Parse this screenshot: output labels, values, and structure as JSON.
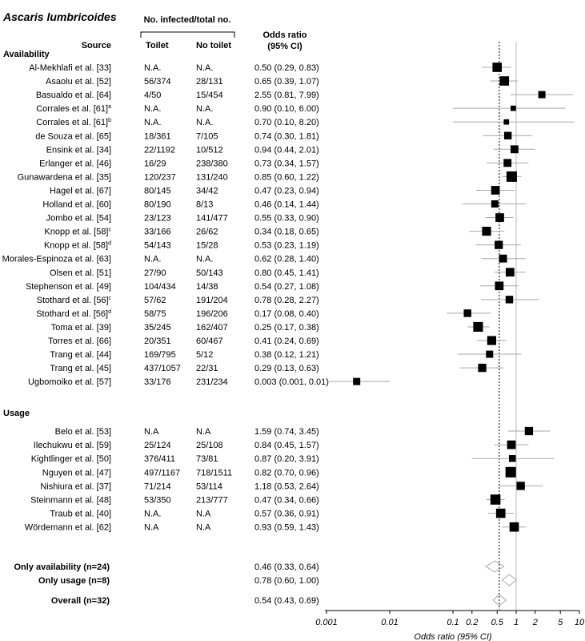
{
  "chart_data": {
    "type": "forest",
    "title": "Ascaris lumbricoides",
    "header": {
      "group": "No. infected/total no.",
      "source": "Source",
      "toilet": "Toilet",
      "no_toilet": "No toilet",
      "or_line1": "Odds ratio",
      "or_line2": "(95% CI)"
    },
    "xlabel": "Odds ratio (95% CI)",
    "xscale": "log",
    "xlim": [
      0.001,
      10
    ],
    "xticks": [
      {
        "v": 0.001,
        "label": "0.001"
      },
      {
        "v": 0.01,
        "label": "0.01"
      },
      {
        "v": 0.1,
        "label": "0.1"
      },
      {
        "v": 0.2,
        "label": "0.2"
      },
      {
        "v": 0.5,
        "label": "0.5"
      },
      {
        "v": 1,
        "label": "1"
      },
      {
        "v": 2,
        "label": "2"
      },
      {
        "v": 5,
        "label": "5"
      },
      {
        "v": 10,
        "label": "10"
      }
    ],
    "reference_line": 1,
    "pooled_line": 0.54,
    "sections": [
      {
        "name": "Availability",
        "studies": [
          {
            "source": "Al-Mekhlafi  et al. [33]",
            "sup": "",
            "toilet": "N.A.",
            "no_toilet": "N.A.",
            "or_text": "0.50 (0.29, 0.83)",
            "or": 0.5,
            "lo": 0.29,
            "hi": 0.83,
            "w": 0.85
          },
          {
            "source": "Asaolu et al. [52]",
            "sup": "",
            "toilet": "56/374",
            "no_toilet": "28/131",
            "or_text": "0.65 (0.39, 1.07)",
            "or": 0.65,
            "lo": 0.39,
            "hi": 1.07,
            "w": 0.85
          },
          {
            "source": "Basualdo et al. [64]",
            "sup": "",
            "toilet": "4/50",
            "no_toilet": "15/454",
            "or_text": "2.55 (0.81, 7.99)",
            "or": 2.55,
            "lo": 0.81,
            "hi": 7.99,
            "w": 0.55
          },
          {
            "source": "Corrales et al. [61]",
            "sup": "a",
            "toilet": "N.A.",
            "no_toilet": "N.A.",
            "or_text": "0.90 (0.10, 6.00)",
            "or": 0.9,
            "lo": 0.1,
            "hi": 6.0,
            "w": 0.3
          },
          {
            "source": "Corrales et al. [61]",
            "sup": "b",
            "toilet": "N.A.",
            "no_toilet": "N.A.",
            "or_text": "0.70 (0.10, 8.20)",
            "or": 0.7,
            "lo": 0.1,
            "hi": 8.2,
            "w": 0.3
          },
          {
            "source": "de Souza et al. [65]",
            "sup": "",
            "toilet": "18/361",
            "no_toilet": "7/105",
            "or_text": "0.74 (0.30, 1.81)",
            "or": 0.74,
            "lo": 0.3,
            "hi": 1.81,
            "w": 0.6
          },
          {
            "source": "Ensink et al. [34]",
            "sup": "",
            "toilet": "22/1192",
            "no_toilet": "10/512",
            "or_text": "0.94 (0.44, 2.01)",
            "or": 0.94,
            "lo": 0.44,
            "hi": 2.01,
            "w": 0.65
          },
          {
            "source": "Erlanger et al. [46]",
            "sup": "",
            "toilet": "16/29",
            "no_toilet": "238/380",
            "or_text": "0.73 (0.34, 1.57)",
            "or": 0.73,
            "lo": 0.34,
            "hi": 1.57,
            "w": 0.65
          },
          {
            "source": "Gunawardena et al. [35]",
            "sup": "",
            "toilet": "120/237",
            "no_toilet": "131/240",
            "or_text": "0.85 (0.60, 1.22)",
            "or": 0.85,
            "lo": 0.6,
            "hi": 1.22,
            "w": 1.0
          },
          {
            "source": "Hagel et al. [67]",
            "sup": "",
            "toilet": "80/145",
            "no_toilet": "34/42",
            "or_text": "0.47 (0.23, 0.94)",
            "or": 0.47,
            "lo": 0.23,
            "hi": 0.94,
            "w": 0.75
          },
          {
            "source": "Holland et al. [60]",
            "sup": "",
            "toilet": "80/190",
            "no_toilet": "8/13",
            "or_text": "0.46 (0.14, 1.44)",
            "or": 0.46,
            "lo": 0.14,
            "hi": 1.44,
            "w": 0.55
          },
          {
            "source": "Jombo et al. [54]",
            "sup": "",
            "toilet": "23/123",
            "no_toilet": "141/477",
            "or_text": "0.55 (0.33, 0.90)",
            "or": 0.55,
            "lo": 0.33,
            "hi": 0.9,
            "w": 0.75
          },
          {
            "source": "Knopp et al. [58]",
            "sup": "c",
            "toilet": "33/166",
            "no_toilet": "26/62",
            "or_text": "0.34 (0.18, 0.65)",
            "or": 0.34,
            "lo": 0.18,
            "hi": 0.65,
            "w": 0.8
          },
          {
            "source": "Knopp et al. [58]",
            "sup": "d",
            "toilet": "54/143",
            "no_toilet": "15/28",
            "or_text": "0.53 (0.23, 1.19)",
            "or": 0.53,
            "lo": 0.23,
            "hi": 1.19,
            "w": 0.7
          },
          {
            "source": "Morales-Espinoza et al. [63]",
            "sup": "",
            "toilet": "N.A.",
            "no_toilet": "N.A.",
            "or_text": "0.62 (0.28, 1.40)",
            "or": 0.62,
            "lo": 0.28,
            "hi": 1.4,
            "w": 0.65
          },
          {
            "source": "Olsen et al. [51]",
            "sup": "",
            "toilet": "27/90",
            "no_toilet": "50/143",
            "or_text": "0.80 (0.45, 1.41)",
            "or": 0.8,
            "lo": 0.45,
            "hi": 1.41,
            "w": 0.75
          },
          {
            "source": "Stephenson et al. [49]",
            "sup": "",
            "toilet": "104/434",
            "no_toilet": "14/38",
            "or_text": "0.54 (0.27, 1.08)",
            "or": 0.54,
            "lo": 0.27,
            "hi": 1.08,
            "w": 0.75
          },
          {
            "source": "Stothard et al. [56]",
            "sup": "c",
            "toilet": "57/62",
            "no_toilet": "191/204",
            "or_text": "0.78 (0.28, 2.27)",
            "or": 0.78,
            "lo": 0.28,
            "hi": 2.27,
            "w": 0.6
          },
          {
            "source": "Stothard et al. [56]",
            "sup": "d",
            "toilet": "58/75",
            "no_toilet": "196/206",
            "or_text": "0.17 (0.08, 0.40)",
            "or": 0.17,
            "lo": 0.08,
            "hi": 0.4,
            "w": 0.6
          },
          {
            "source": "Toma et al. [39]",
            "sup": "",
            "toilet": "35/245",
            "no_toilet": "162/407",
            "or_text": "0.25 (0.17, 0.38)",
            "or": 0.25,
            "lo": 0.17,
            "hi": 0.38,
            "w": 0.9
          },
          {
            "source": "Torres et al. [66]",
            "sup": "",
            "toilet": "20/351",
            "no_toilet": "60/467",
            "or_text": "0.41 (0.24, 0.69)",
            "or": 0.41,
            "lo": 0.24,
            "hi": 0.69,
            "w": 0.8
          },
          {
            "source": "Trang et al. [44]",
            "sup": "",
            "toilet": "169/795",
            "no_toilet": "5/12",
            "or_text": "0.38 (0.12, 1.21)",
            "or": 0.38,
            "lo": 0.12,
            "hi": 1.21,
            "w": 0.55
          },
          {
            "source": "Trang et al. [45]",
            "sup": "",
            "toilet": "437/1057",
            "no_toilet": "22/31",
            "or_text": "0.29 (0.13, 0.63)",
            "or": 0.29,
            "lo": 0.13,
            "hi": 0.63,
            "w": 0.7
          },
          {
            "source": "Ugbomoiko et al. [57]",
            "sup": "",
            "toilet": "33/176",
            "no_toilet": "231/234",
            "or_text": "0.003 (0.001, 0.01)",
            "or": 0.003,
            "lo": 0.001,
            "hi": 0.01,
            "w": 0.55
          }
        ]
      },
      {
        "name": "Usage",
        "studies": [
          {
            "source": "Belo et al. [53]",
            "sup": "",
            "toilet": "N.A",
            "no_toilet": "N.A",
            "or_text": "1.59 (0.74, 3.45)",
            "or": 1.59,
            "lo": 0.74,
            "hi": 3.45,
            "w": 0.7
          },
          {
            "source": "Ilechukwu et al. [59]",
            "sup": "",
            "toilet": "25/124",
            "no_toilet": "25/108",
            "or_text": "0.84 (0.45, 1.57)",
            "or": 0.84,
            "lo": 0.45,
            "hi": 1.57,
            "w": 0.75
          },
          {
            "source": "Kightlinger et al. [50]",
            "sup": "",
            "toilet": "376/411",
            "no_toilet": "73/81",
            "or_text": "0.87 (0.20, 3.91)",
            "or": 0.87,
            "lo": 0.2,
            "hi": 3.91,
            "w": 0.5
          },
          {
            "source": "Nguyen et al. [47]",
            "sup": "",
            "toilet": "497/1167",
            "no_toilet": "718/1511",
            "or_text": "0.82 (0.70, 0.96)",
            "or": 0.82,
            "lo": 0.7,
            "hi": 0.96,
            "w": 1.0
          },
          {
            "source": "Nishiura et al. [37]",
            "sup": "",
            "toilet": "71/214",
            "no_toilet": "53/114",
            "or_text": "1.18 (0.53, 2.64)",
            "or": 1.18,
            "lo": 0.53,
            "hi": 2.64,
            "w": 0.7
          },
          {
            "source": "Steinmann et al. [48]",
            "sup": "",
            "toilet": "53/350",
            "no_toilet": "213/777",
            "or_text": "0.47 (0.34, 0.66)",
            "or": 0.47,
            "lo": 0.34,
            "hi": 0.66,
            "w": 0.95
          },
          {
            "source": "Traub et al. [40]",
            "sup": "",
            "toilet": "N.A.",
            "no_toilet": "N.A",
            "or_text": "0.57 (0.36, 0.91)",
            "or": 0.57,
            "lo": 0.36,
            "hi": 0.91,
            "w": 0.85
          },
          {
            "source": "Wördemann et al. [62]",
            "sup": "",
            "toilet": "N.A",
            "no_toilet": "N.A",
            "or_text": "0.93 (0.59, 1.43)",
            "or": 0.93,
            "lo": 0.59,
            "hi": 1.43,
            "w": 0.85
          }
        ]
      }
    ],
    "summaries": [
      {
        "label": "Only availability (n=24)",
        "or_text": "0.46 (0.33, 0.64)",
        "or": 0.46,
        "lo": 0.33,
        "hi": 0.64
      },
      {
        "label": "Only usage (n=8)",
        "or_text": "0.78 (0.60, 1.00)",
        "or": 0.78,
        "lo": 0.6,
        "hi": 1.0
      },
      {
        "label": "Overall (n=32)",
        "or_text": "0.54 (0.43, 0.69)",
        "or": 0.54,
        "lo": 0.43,
        "hi": 0.69
      }
    ]
  }
}
